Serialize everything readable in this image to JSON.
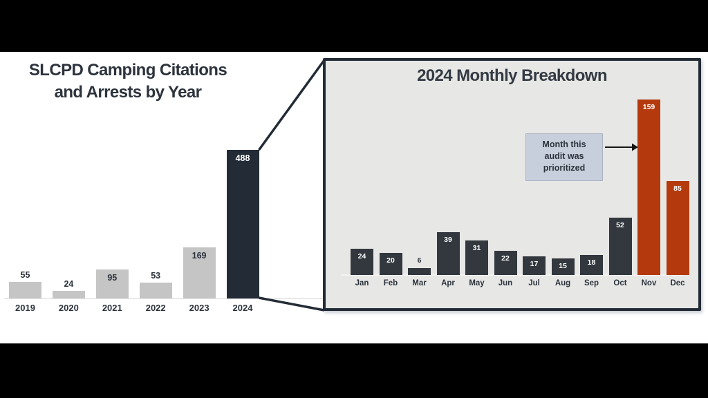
{
  "frame": {
    "letterbox_color": "#000000",
    "canvas_color": "#ffffff"
  },
  "chart_data": [
    {
      "id": "yearly",
      "type": "bar",
      "title": "SLCPD Camping Citations and Arrests by Year",
      "title_lines": [
        "SLCPD Camping Citations",
        "and Arrests by Year"
      ],
      "categories": [
        "2019",
        "2020",
        "2021",
        "2022",
        "2023",
        "2024"
      ],
      "values": [
        55,
        24,
        95,
        53,
        169,
        488
      ],
      "bar_color": "#c5c5c5",
      "highlight_index": 5,
      "highlight_color": "#232c36",
      "value_label_color": "#2b323b",
      "highlight_value_label_color": "#ffffff",
      "gridlines": false,
      "legend": "none"
    },
    {
      "id": "monthly",
      "type": "bar",
      "title": "2024 Monthly Breakdown",
      "categories": [
        "Jan",
        "Feb",
        "Mar",
        "Apr",
        "May",
        "Jun",
        "Jul",
        "Aug",
        "Sep",
        "Oct",
        "Nov",
        "Dec"
      ],
      "values": [
        24,
        20,
        6,
        39,
        31,
        22,
        17,
        15,
        18,
        52,
        159,
        85
      ],
      "bar_color": "#32383e",
      "highlight_indices": [
        10,
        11
      ],
      "highlight_color": "#b43a0e",
      "value_label_color": "#ffffff",
      "outside_value_label_color": "#2b323b",
      "panel_bg": "#e7e7e6",
      "panel_border_color": "#232c36",
      "annotation": {
        "text": "Month this audit was prioritized",
        "text_lines": [
          "Month this",
          "audit was",
          "prioritized"
        ],
        "box_color": "#c8cfdc",
        "arrow_target": "Nov"
      },
      "gridlines": false,
      "legend": "none"
    }
  ]
}
